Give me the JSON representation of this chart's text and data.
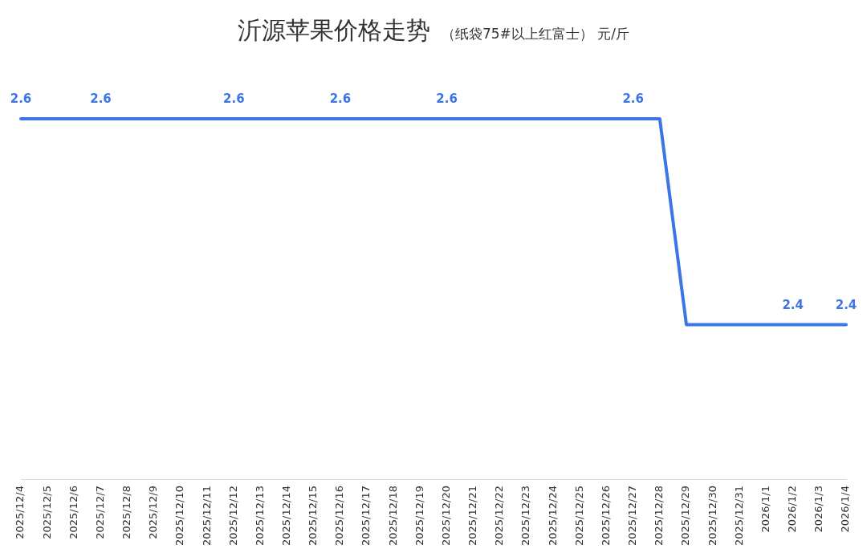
{
  "chart_data": {
    "type": "line",
    "title": "沂源苹果价格走势",
    "subtitle": "（纸袋75#以上红富士） 元/斤",
    "categories": [
      "2025/12/4",
      "2025/12/5",
      "2025/12/6",
      "2025/12/7",
      "2025/12/8",
      "2025/12/9",
      "2025/12/10",
      "2025/12/11",
      "2025/12/12",
      "2025/12/13",
      "2025/12/14",
      "2025/12/15",
      "2025/12/16",
      "2025/12/17",
      "2025/12/18",
      "2025/12/19",
      "2025/12/20",
      "2025/12/21",
      "2025/12/22",
      "2025/12/23",
      "2025/12/24",
      "2025/12/25",
      "2025/12/26",
      "2025/12/27",
      "2025/12/28",
      "2025/12/29",
      "2025/12/30",
      "2025/12/31",
      "2026/1/1",
      "2026/1/2",
      "2026/1/3",
      "2026/1/4"
    ],
    "values": [
      2.6,
      2.6,
      2.6,
      2.6,
      2.6,
      2.6,
      2.6,
      2.6,
      2.6,
      2.6,
      2.6,
      2.6,
      2.6,
      2.6,
      2.6,
      2.6,
      2.6,
      2.6,
      2.6,
      2.6,
      2.6,
      2.6,
      2.6,
      2.6,
      2.6,
      2.4,
      2.4,
      2.4,
      2.4,
      2.4,
      2.4,
      2.4
    ],
    "value_labels": [
      "2.6",
      null,
      null,
      "2.6",
      null,
      null,
      null,
      null,
      "2.6",
      null,
      null,
      null,
      "2.6",
      null,
      null,
      null,
      "2.6",
      null,
      null,
      null,
      null,
      null,
      null,
      "2.6",
      null,
      null,
      null,
      null,
      null,
      "2.4",
      null,
      "2.4"
    ],
    "color": "#3d74e8",
    "tick_labels": "x",
    "grid": false,
    "legend": false,
    "marker": "none",
    "line_style": "solid"
  }
}
